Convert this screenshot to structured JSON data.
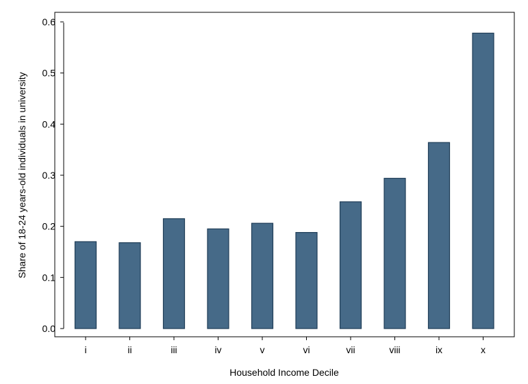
{
  "chart_data": {
    "type": "bar",
    "title": "",
    "xlabel": "Household Income Decile",
    "ylabel": "Share of 18-24 years-old individuals in university",
    "categories": [
      "i",
      "ii",
      "iii",
      "iv",
      "v",
      "vi",
      "vii",
      "viii",
      "ix",
      "x"
    ],
    "values": [
      0.17,
      0.168,
      0.215,
      0.195,
      0.206,
      0.188,
      0.248,
      0.294,
      0.364,
      0.578
    ],
    "ylim": [
      0,
      0.62
    ],
    "yticks": [
      0.0,
      0.1,
      0.2,
      0.3,
      0.4,
      0.5,
      0.6
    ],
    "ytick_labels": [
      "0.0",
      "0.1",
      "0.2",
      "0.3",
      "0.4",
      "0.5",
      "0.6"
    ],
    "grid": false,
    "legend": "none",
    "colors": {
      "bar_fill": "#466a88",
      "bar_stroke": "#1f3d57",
      "axis": "#000000",
      "frame": "#000000"
    }
  }
}
